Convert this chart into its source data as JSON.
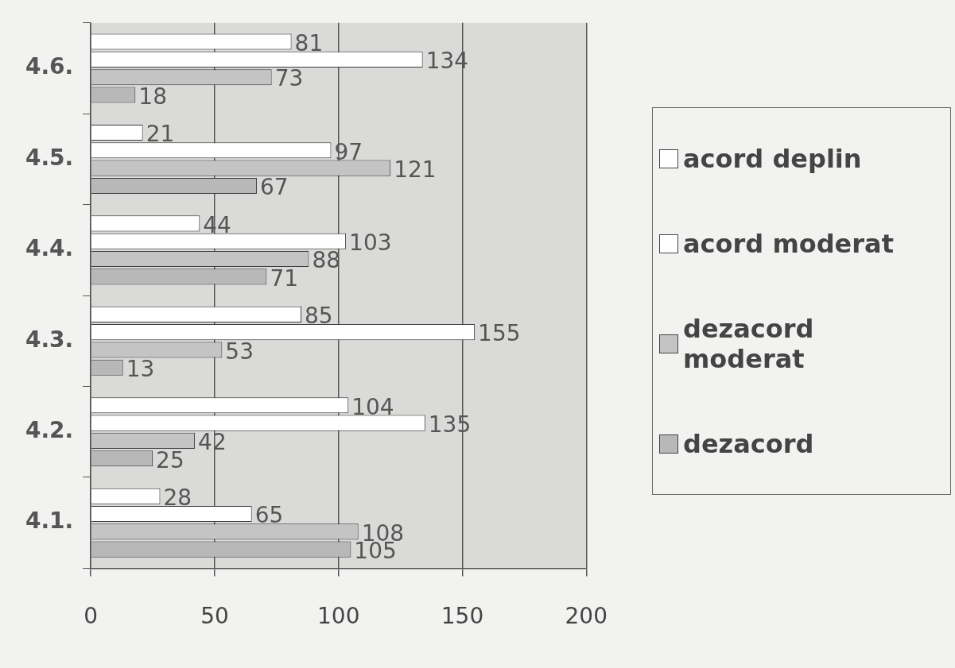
{
  "chart_data": {
    "type": "bar",
    "orientation": "horizontal",
    "categories": [
      "4.6.",
      "4.5.",
      "4.4.",
      "4.3.",
      "4.2.",
      "4.1."
    ],
    "series": [
      {
        "name": "acord deplin",
        "color": "#ffffff",
        "values": [
          81,
          21,
          44,
          85,
          104,
          28
        ]
      },
      {
        "name": "acord moderat",
        "color": "#ffffff",
        "values": [
          134,
          97,
          103,
          155,
          135,
          65
        ]
      },
      {
        "name": "dezacord moderat",
        "color": "#c4c4c4",
        "values": [
          73,
          121,
          88,
          53,
          42,
          108
        ]
      },
      {
        "name": "dezacord",
        "color": "#b8b8b8",
        "values": [
          18,
          67,
          71,
          13,
          25,
          105
        ]
      }
    ],
    "xlim": [
      0,
      200
    ],
    "xticks": [
      0,
      50,
      100,
      150,
      200
    ],
    "grid": "x",
    "legend": "right",
    "data_labels": true
  }
}
